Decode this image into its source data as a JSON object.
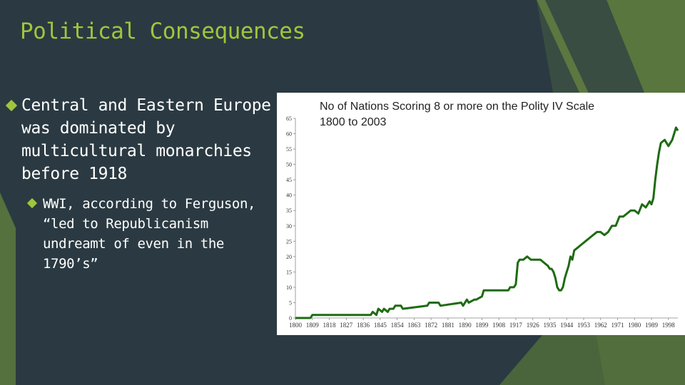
{
  "slide": {
    "title": "Political Consequences",
    "bullet_1": "Central and Eastern Europe was dominated by multicultural monarchies before 1918",
    "bullet_2": "WWI, according to Ferguson, “led to Republicanism undreamt of even in the 1790’s”"
  },
  "colors": {
    "background": "#2b3a42",
    "accent": "#9ec73c",
    "line": "#1e6b12"
  },
  "chart_data": {
    "type": "line",
    "title": "No of Nations Scoring 8 or more on the Polity IV Scale",
    "subtitle": "1800 to 2003",
    "xlabel": "",
    "ylabel": "",
    "xlim": [
      1800,
      2003
    ],
    "ylim": [
      0,
      65
    ],
    "x_ticks": [
      "1800",
      "1809",
      "1818",
      "1827",
      "1836",
      "1845",
      "1854",
      "1863",
      "1872",
      "1881",
      "1890",
      "1899",
      "1908",
      "1917",
      "1926",
      "1935",
      "1944",
      "1953",
      "1962",
      "1971",
      "1980",
      "1989",
      "1998"
    ],
    "y_ticks": [
      "0",
      "5",
      "10",
      "15",
      "20",
      "25",
      "30",
      "35",
      "40",
      "45",
      "50",
      "55",
      "60",
      "65"
    ],
    "grid": false,
    "legend": "none",
    "series": [
      {
        "x": [
          1800,
          1808,
          1809,
          1840,
          1841,
          1843,
          1844,
          1846,
          1847,
          1849,
          1850,
          1852,
          1853,
          1856,
          1857,
          1870,
          1871,
          1876,
          1877,
          1888,
          1889,
          1891,
          1892,
          1895,
          1896,
          1899,
          1900,
          1913,
          1914,
          1916,
          1917,
          1918,
          1919,
          1921,
          1923,
          1925,
          1927,
          1929,
          1930,
          1932,
          1934,
          1935,
          1936,
          1937,
          1938,
          1939,
          1940,
          1941,
          1942,
          1943,
          1944,
          1945,
          1946,
          1947,
          1948,
          1950,
          1952,
          1954,
          1956,
          1958,
          1960,
          1962,
          1964,
          1966,
          1968,
          1970,
          1972,
          1974,
          1976,
          1978,
          1980,
          1982,
          1984,
          1986,
          1988,
          1989,
          1990,
          1991,
          1992,
          1993,
          1994,
          1996,
          1998,
          2000,
          2002,
          2003
        ],
        "y": [
          0,
          0,
          1,
          1,
          2,
          1,
          3,
          2,
          3,
          2,
          3,
          3,
          4,
          4,
          3,
          4,
          5,
          5,
          4,
          5,
          4,
          6,
          5,
          6,
          6,
          7,
          9,
          9,
          10,
          10,
          11,
          18,
          19,
          19,
          20,
          19,
          19,
          19,
          19,
          18,
          17,
          16,
          16,
          15,
          13,
          10,
          9,
          9,
          10,
          13,
          15,
          17,
          20,
          19,
          22,
          23,
          24,
          25,
          26,
          27,
          28,
          28,
          27,
          28,
          30,
          30,
          33,
          33,
          34,
          35,
          35,
          34,
          37,
          36,
          38,
          37,
          39,
          45,
          50,
          54,
          57,
          58,
          56,
          58,
          62,
          61
        ]
      }
    ]
  }
}
